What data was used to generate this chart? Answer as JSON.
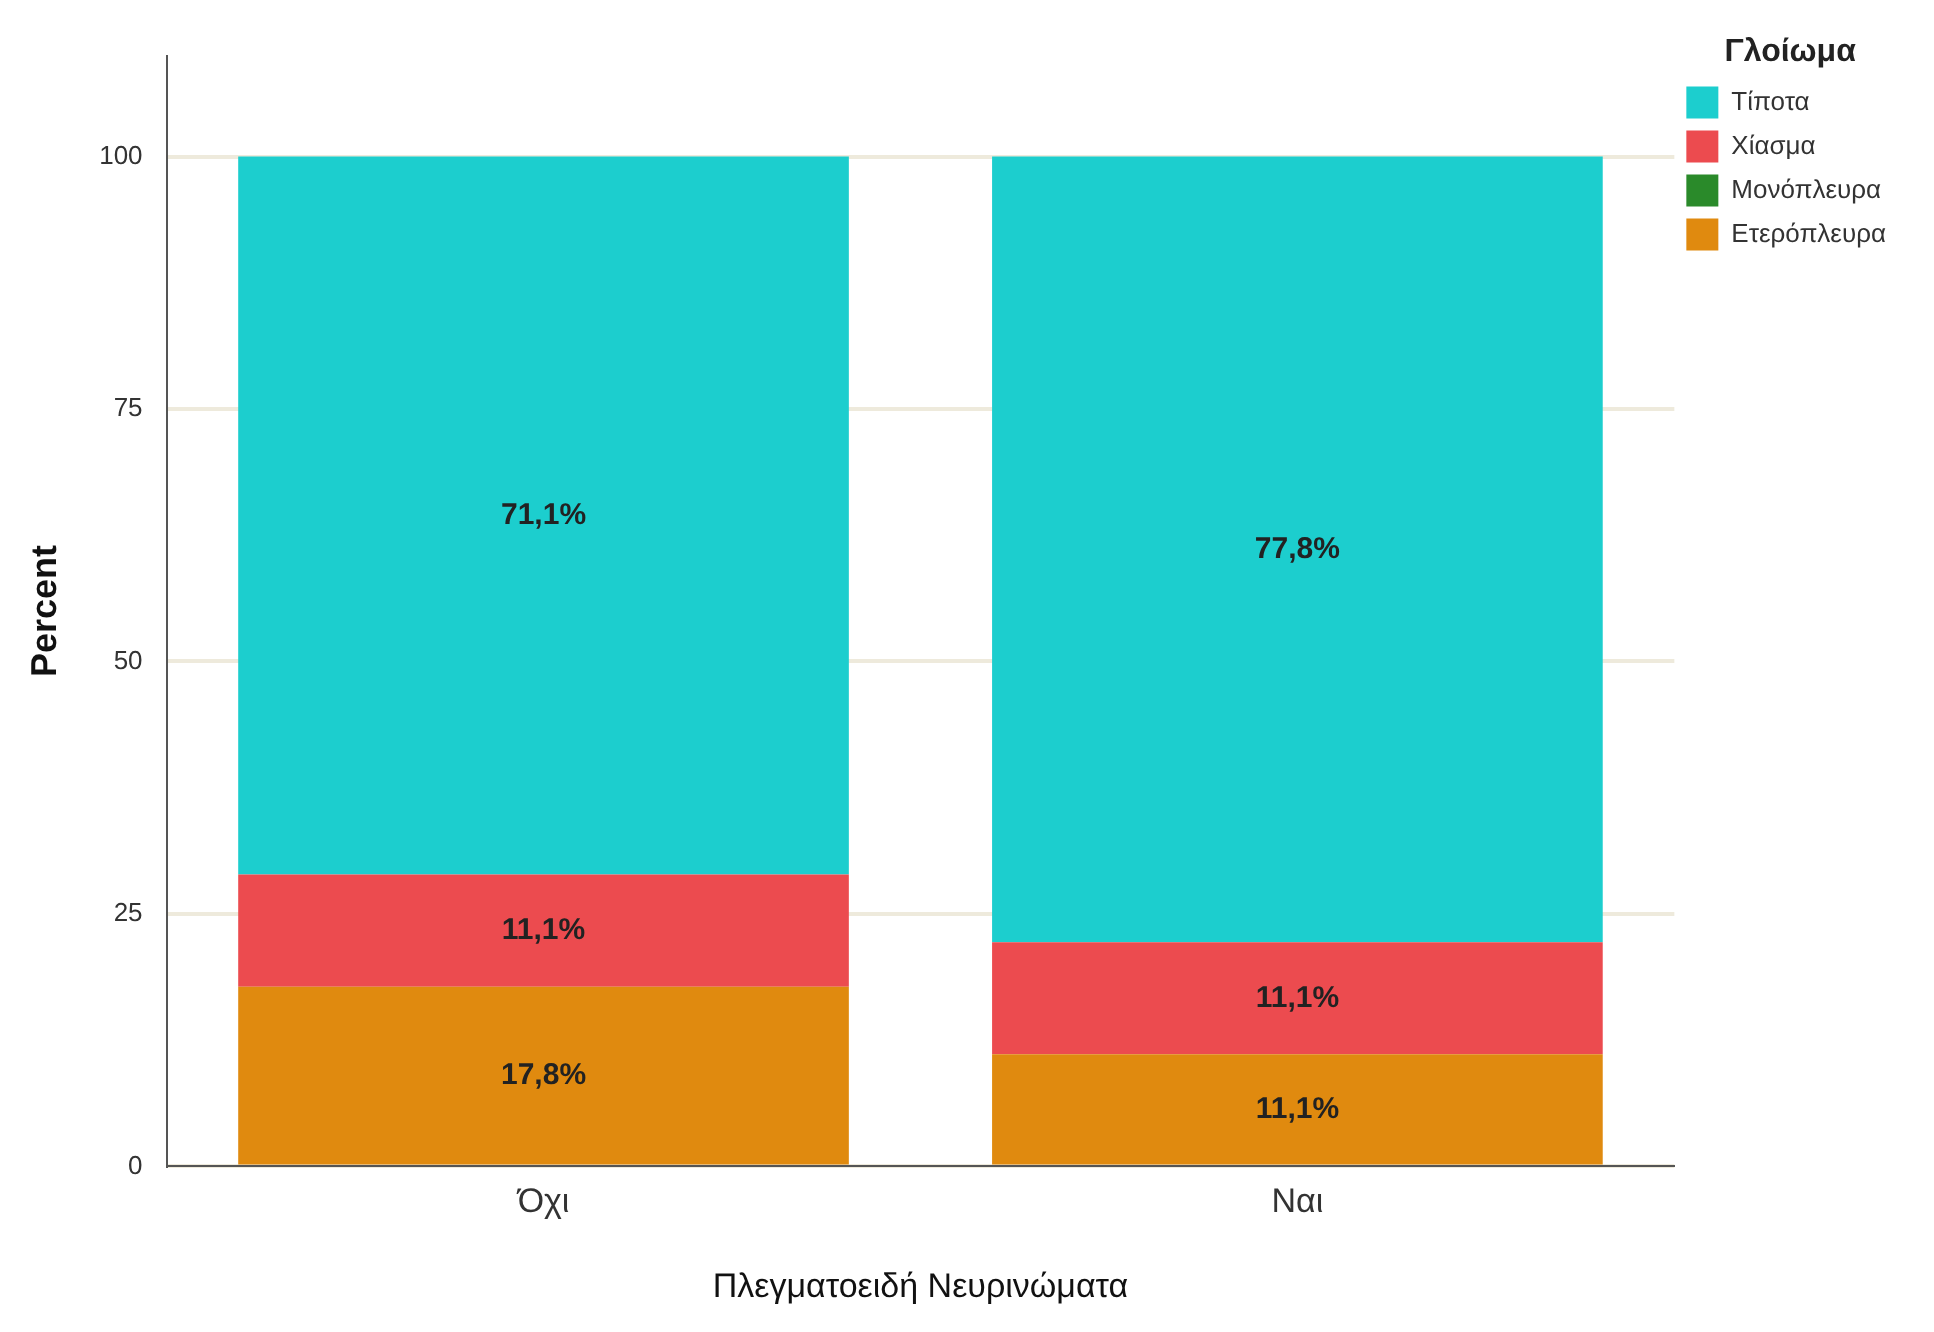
{
  "chart_data": {
    "type": "bar",
    "xlabel": "Πλεγματοειδή Νευρινώματα",
    "ylabel": "Percent",
    "legend_title": "Γλοίωμα",
    "categories": [
      "Όχι",
      "Ναι"
    ],
    "series": [
      {
        "name": "Ετερόπλευρα",
        "color": "#e08a0f",
        "values": [
          17.8,
          11.1
        ],
        "value_labels": [
          "17,8%",
          "11,1%"
        ]
      },
      {
        "name": "Μονόπλευρα",
        "color": "#2a8a2a",
        "values": [
          0,
          0
        ],
        "value_labels": [
          null,
          null
        ]
      },
      {
        "name": "Χίασμα",
        "color": "#ec4b4f",
        "values": [
          11.1,
          11.1
        ],
        "value_labels": [
          "11,1%",
          "11,1%"
        ]
      },
      {
        "name": "Τίποτα",
        "color": "#1ccece",
        "values": [
          71.1,
          77.8
        ],
        "value_labels": [
          "71,1%",
          "77,8%"
        ]
      }
    ],
    "stacked": true,
    "ylim": [
      0,
      110
    ],
    "yticks": [
      0,
      25,
      50,
      75,
      100
    ],
    "grid": "y",
    "legend": "top right"
  }
}
